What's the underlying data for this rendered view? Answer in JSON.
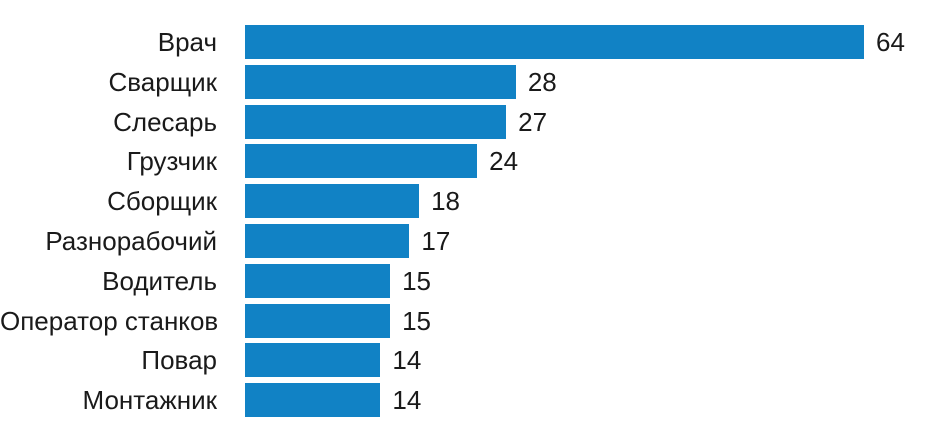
{
  "chart_data": {
    "type": "bar",
    "orientation": "horizontal",
    "title": "",
    "xlabel": "",
    "ylabel": "",
    "grid": false,
    "legend": false,
    "value_labels_visible": true,
    "bar_color": "#1182c5",
    "text_color": "#1a1a1a",
    "background_color": "#ffffff",
    "categories": [
      "Врач",
      "Сварщик",
      "Слесарь",
      "Грузчик",
      "Сборщик",
      "Разнорабочий",
      "Водитель",
      "Оператор станков",
      "Повар",
      "Монтажник"
    ],
    "values": [
      64,
      28,
      27,
      24,
      18,
      17,
      15,
      15,
      14,
      14
    ]
  }
}
